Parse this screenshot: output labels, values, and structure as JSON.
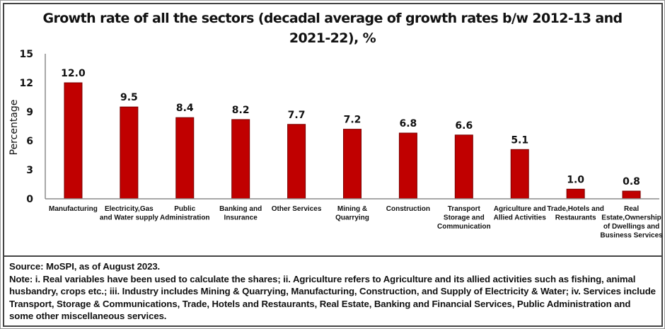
{
  "chart_data": {
    "type": "bar",
    "title": "Growth rate of all the sectors (decadal average of growth rates b/w 2012-13 and 2021-22), %",
    "title_lines": [
      "Growth rate of all the sectors (decadal average of growth rates b/w 2012-13 and",
      "2021-22), %"
    ],
    "xlabel": "",
    "ylabel": "Percentage",
    "ylim": [
      0,
      15
    ],
    "yticks": [
      0,
      3,
      6,
      9,
      12,
      15
    ],
    "grid": false,
    "legend": "none",
    "bar_color": "#C00000",
    "bar_edge_color": "#7A0000",
    "categories": [
      "Manufacturing",
      "Electricity,Gas and Water supply",
      "Public Administration",
      "Banking and Insurance",
      "Other Services",
      "Mining & Quarrying",
      "Construction",
      "Transport Storage and Communication",
      "Agriculture and Allied Activities",
      "Trade,Hotels and Restaurants",
      "Real Estate,Ownership of Dwellings and Business Services"
    ],
    "category_label_lines": [
      [
        "Manufacturing"
      ],
      [
        "Electricity,Gas",
        "and Water supply"
      ],
      [
        "Public",
        "Administration"
      ],
      [
        "Banking and",
        "Insurance"
      ],
      [
        "Other Services"
      ],
      [
        "Mining &",
        "Quarrying"
      ],
      [
        "Construction"
      ],
      [
        "Transport",
        "Storage and",
        "Communication"
      ],
      [
        "Agriculture and",
        "Allied Activities"
      ],
      [
        "Trade,Hotels and",
        "Restaurants"
      ],
      [
        "Real",
        "Estate,Ownership",
        "of Dwellings and",
        "Business Services"
      ]
    ],
    "values": [
      12.0,
      9.5,
      8.4,
      8.2,
      7.7,
      7.2,
      6.8,
      6.6,
      5.1,
      1.0,
      0.8
    ],
    "data_labels": [
      "12.0",
      "9.5",
      "8.4",
      "8.2",
      "7.7",
      "7.2",
      "6.8",
      "6.6",
      "5.1",
      "1.0",
      "0.8"
    ]
  },
  "footer": {
    "source": "Source: MoSPI, as of August 2023.",
    "note": "Note: i. Real variables have been used to calculate the shares; ii. Agriculture refers to Agriculture and its allied activities such as fishing, animal husbandry, crops etc.; iii. Industry includes Mining & Quarrying, Manufacturing, Construction, and Supply of Electricity & Water; iv. Services include Transport, Storage & Communications, Trade, Hotels and Restaurants, Real Estate, Banking and Financial Services, Public Administration and some other miscellaneous services."
  }
}
